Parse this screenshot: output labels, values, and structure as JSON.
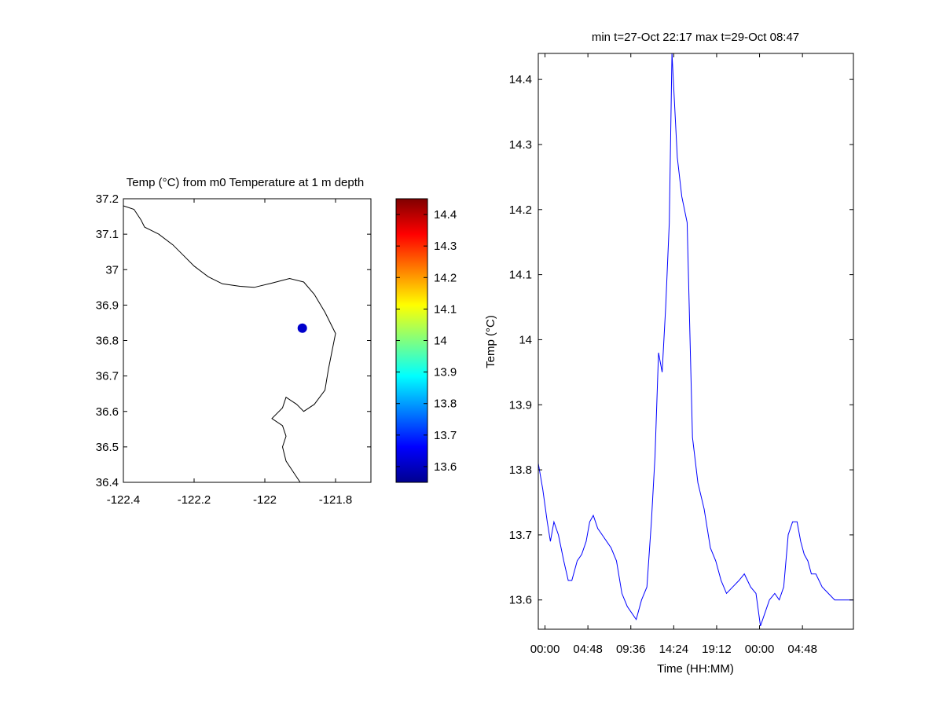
{
  "chart_data": [
    {
      "type": "scatter",
      "title": "Temp (°C) from m0 Temperature at 1 m depth",
      "xlabel": "",
      "ylabel": "",
      "xlim": [
        -122.4,
        -121.7
      ],
      "ylim": [
        36.4,
        37.2
      ],
      "xticks": [
        -122.4,
        -122.2,
        -122.0,
        -121.8
      ],
      "xtick_labels": [
        "-122.4",
        "-122.2",
        "-122",
        "-121.8"
      ],
      "yticks": [
        36.4,
        36.5,
        36.6,
        36.7,
        36.8,
        36.9,
        37.0,
        37.1,
        37.2
      ],
      "ytick_labels": [
        "36.4",
        "36.5",
        "36.6",
        "36.7",
        "36.8",
        "36.9",
        "37",
        "37.1",
        "37.2"
      ],
      "grid": false,
      "coastline": [
        [
          -122.4,
          37.18
        ],
        [
          -122.37,
          37.17
        ],
        [
          -122.35,
          37.14
        ],
        [
          -122.34,
          37.12
        ],
        [
          -122.32,
          37.11
        ],
        [
          -122.3,
          37.1
        ],
        [
          -122.26,
          37.07
        ],
        [
          -122.23,
          37.04
        ],
        [
          -122.2,
          37.01
        ],
        [
          -122.16,
          36.98
        ],
        [
          -122.12,
          36.96
        ],
        [
          -122.07,
          36.953
        ],
        [
          -122.03,
          36.95
        ],
        [
          -121.98,
          36.962
        ],
        [
          -121.93,
          36.975
        ],
        [
          -121.89,
          36.965
        ],
        [
          -121.86,
          36.93
        ],
        [
          -121.83,
          36.88
        ],
        [
          -121.8,
          36.82
        ],
        [
          -121.81,
          36.77
        ],
        [
          -121.82,
          36.72
        ],
        [
          -121.83,
          36.66
        ],
        [
          -121.86,
          36.62
        ],
        [
          -121.89,
          36.6
        ],
        [
          -121.91,
          36.62
        ],
        [
          -121.94,
          36.64
        ],
        [
          -121.95,
          36.61
        ],
        [
          -121.98,
          36.58
        ],
        [
          -121.95,
          36.56
        ],
        [
          -121.94,
          36.53
        ],
        [
          -121.95,
          36.5
        ],
        [
          -121.94,
          36.46
        ],
        [
          -121.92,
          36.43
        ],
        [
          -121.9,
          36.4
        ]
      ],
      "points": [
        {
          "lon": -121.894,
          "lat": 36.835,
          "temp": 13.57
        }
      ],
      "point_color": "#0000cc",
      "colorbar": {
        "min": 13.55,
        "max": 14.45,
        "ticks": [
          13.6,
          13.7,
          13.8,
          13.9,
          14.0,
          14.1,
          14.2,
          14.3,
          14.4
        ],
        "tick_labels": [
          "13.6",
          "13.7",
          "13.8",
          "13.9",
          "14",
          "14.1",
          "14.2",
          "14.3",
          "14.4"
        ],
        "colormap": "jet"
      }
    },
    {
      "type": "line",
      "title": "min t=27-Oct 22:17 max t=29-Oct 08:47",
      "xlabel": "Time (HH:MM)",
      "ylabel": "Temp (°C)",
      "x_unit": "hours since 00:00",
      "xlim": [
        -0.75,
        34.5
      ],
      "ylim": [
        13.555,
        14.44
      ],
      "xticks": [
        0,
        4.8,
        9.6,
        14.4,
        19.2,
        24,
        28.8
      ],
      "xtick_labels": [
        "00:00",
        "04:48",
        "09:36",
        "14:24",
        "19:12",
        "00:00",
        "04:48"
      ],
      "yticks": [
        13.6,
        13.7,
        13.8,
        13.9,
        14.0,
        14.1,
        14.2,
        14.3,
        14.4
      ],
      "ytick_labels": [
        "13.6",
        "13.7",
        "13.8",
        "13.9",
        "14",
        "14.1",
        "14.2",
        "14.3",
        "14.4"
      ],
      "grid": false,
      "series": [
        {
          "color": "#0000ff",
          "x": [
            -0.75,
            -0.25,
            0.25,
            0.6,
            1.0,
            1.5,
            2.1,
            2.6,
            3.0,
            3.6,
            4.1,
            4.6,
            5.0,
            5.4,
            5.9,
            6.4,
            6.9,
            7.4,
            8.0,
            8.6,
            9.2,
            9.7,
            10.2,
            10.8,
            11.4,
            11.9,
            12.3,
            12.7,
            13.1,
            13.5,
            13.9,
            14.2,
            14.8,
            15.3,
            15.9,
            16.5,
            17.1,
            17.8,
            18.5,
            19.1,
            19.7,
            20.3,
            21.0,
            21.7,
            22.3,
            23.0,
            23.6,
            24.1,
            24.6,
            25.1,
            25.7,
            26.2,
            26.7,
            27.2,
            27.7,
            28.2,
            28.6,
            29.0,
            29.4,
            29.8,
            30.3,
            31.0,
            31.7,
            32.4,
            33.0,
            33.6,
            34.2,
            34.5
          ],
          "y": [
            13.81,
            13.77,
            13.72,
            13.69,
            13.72,
            13.7,
            13.66,
            13.63,
            13.63,
            13.66,
            13.67,
            13.69,
            13.72,
            13.73,
            13.71,
            13.7,
            13.69,
            13.68,
            13.66,
            13.61,
            13.59,
            13.58,
            13.57,
            13.6,
            13.62,
            13.72,
            13.82,
            13.98,
            13.95,
            14.05,
            14.18,
            14.44,
            14.28,
            14.22,
            14.18,
            13.85,
            13.78,
            13.74,
            13.68,
            13.66,
            13.63,
            13.61,
            13.62,
            13.63,
            13.64,
            13.62,
            13.61,
            13.56,
            13.58,
            13.6,
            13.61,
            13.6,
            13.62,
            13.7,
            13.72,
            13.72,
            13.69,
            13.67,
            13.66,
            13.64,
            13.64,
            13.62,
            13.61,
            13.6,
            13.6,
            13.6,
            13.6,
            13.6
          ]
        }
      ]
    }
  ]
}
